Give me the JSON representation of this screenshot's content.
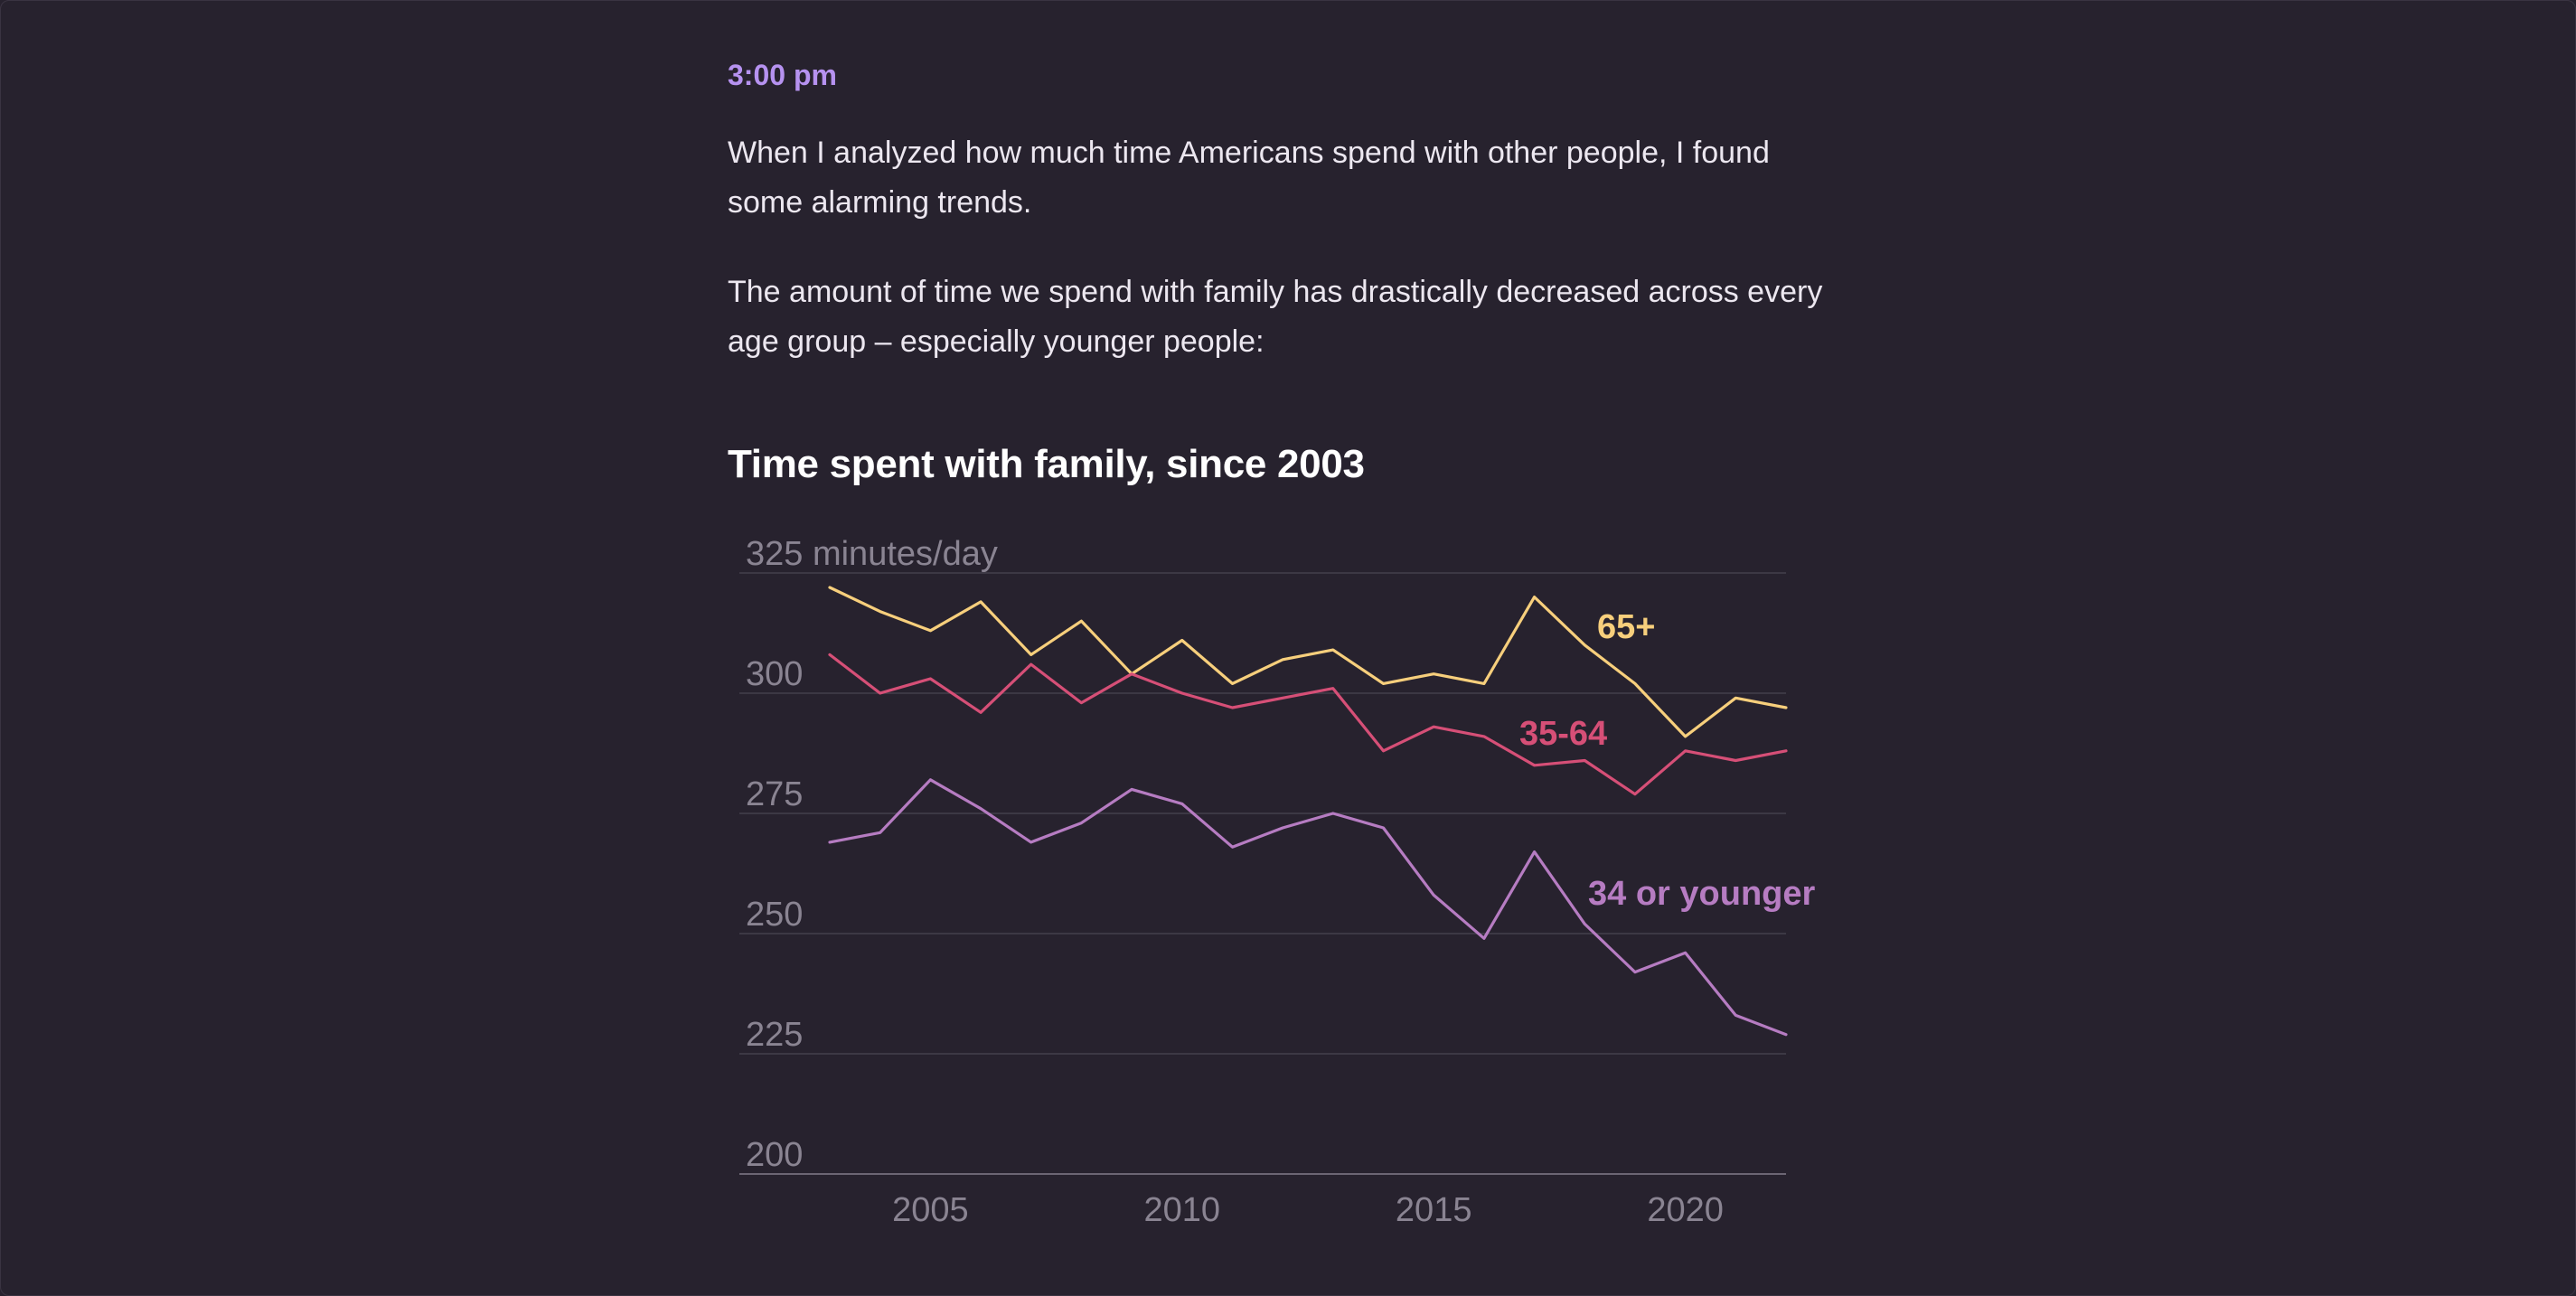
{
  "article": {
    "timestamp": "3:00 pm",
    "paragraph_1": "When I analyzed how much time Americans spend with other people, I found some alarming trends.",
    "paragraph_2": "The amount of time we spend with family has drastically decreased across every age group – especially younger people:"
  },
  "chart_data": {
    "type": "line",
    "title": "Time spent with family, since 2003",
    "ylabel": "325 minutes/day",
    "xlabel": "",
    "ylim": [
      200,
      325
    ],
    "yticks": [
      200,
      225,
      250,
      275,
      300,
      325
    ],
    "ytick_labels": [
      "200",
      "225",
      "250",
      "275",
      "300",
      "325 minutes/day"
    ],
    "xlim": [
      2003,
      2022
    ],
    "xticks": [
      2005,
      2010,
      2015,
      2020
    ],
    "xtick_labels": [
      "2005",
      "2010",
      "2015",
      "2020"
    ],
    "grid": true,
    "x": [
      2003,
      2004,
      2005,
      2006,
      2007,
      2008,
      2009,
      2010,
      2011,
      2012,
      2013,
      2014,
      2015,
      2016,
      2017,
      2018,
      2019,
      2020,
      2021,
      2022
    ],
    "series": [
      {
        "name": "65+",
        "color": "#f7cf7c",
        "values": [
          322,
          317,
          313,
          319,
          308,
          315,
          304,
          311,
          302,
          307,
          309,
          302,
          304,
          302,
          320,
          310,
          302,
          291,
          299,
          297
        ]
      },
      {
        "name": "35-64",
        "color": "#d64f77",
        "values": [
          308,
          300,
          303,
          296,
          306,
          298,
          304,
          300,
          297,
          299,
          301,
          288,
          293,
          291,
          285,
          286,
          279,
          288,
          286,
          288
        ]
      },
      {
        "name": "34 or younger",
        "color": "#b67cc2",
        "values": [
          269,
          271,
          282,
          276,
          269,
          273,
          280,
          277,
          268,
          272,
          275,
          272,
          258,
          249,
          267,
          252,
          242,
          246,
          233,
          229
        ]
      }
    ]
  }
}
